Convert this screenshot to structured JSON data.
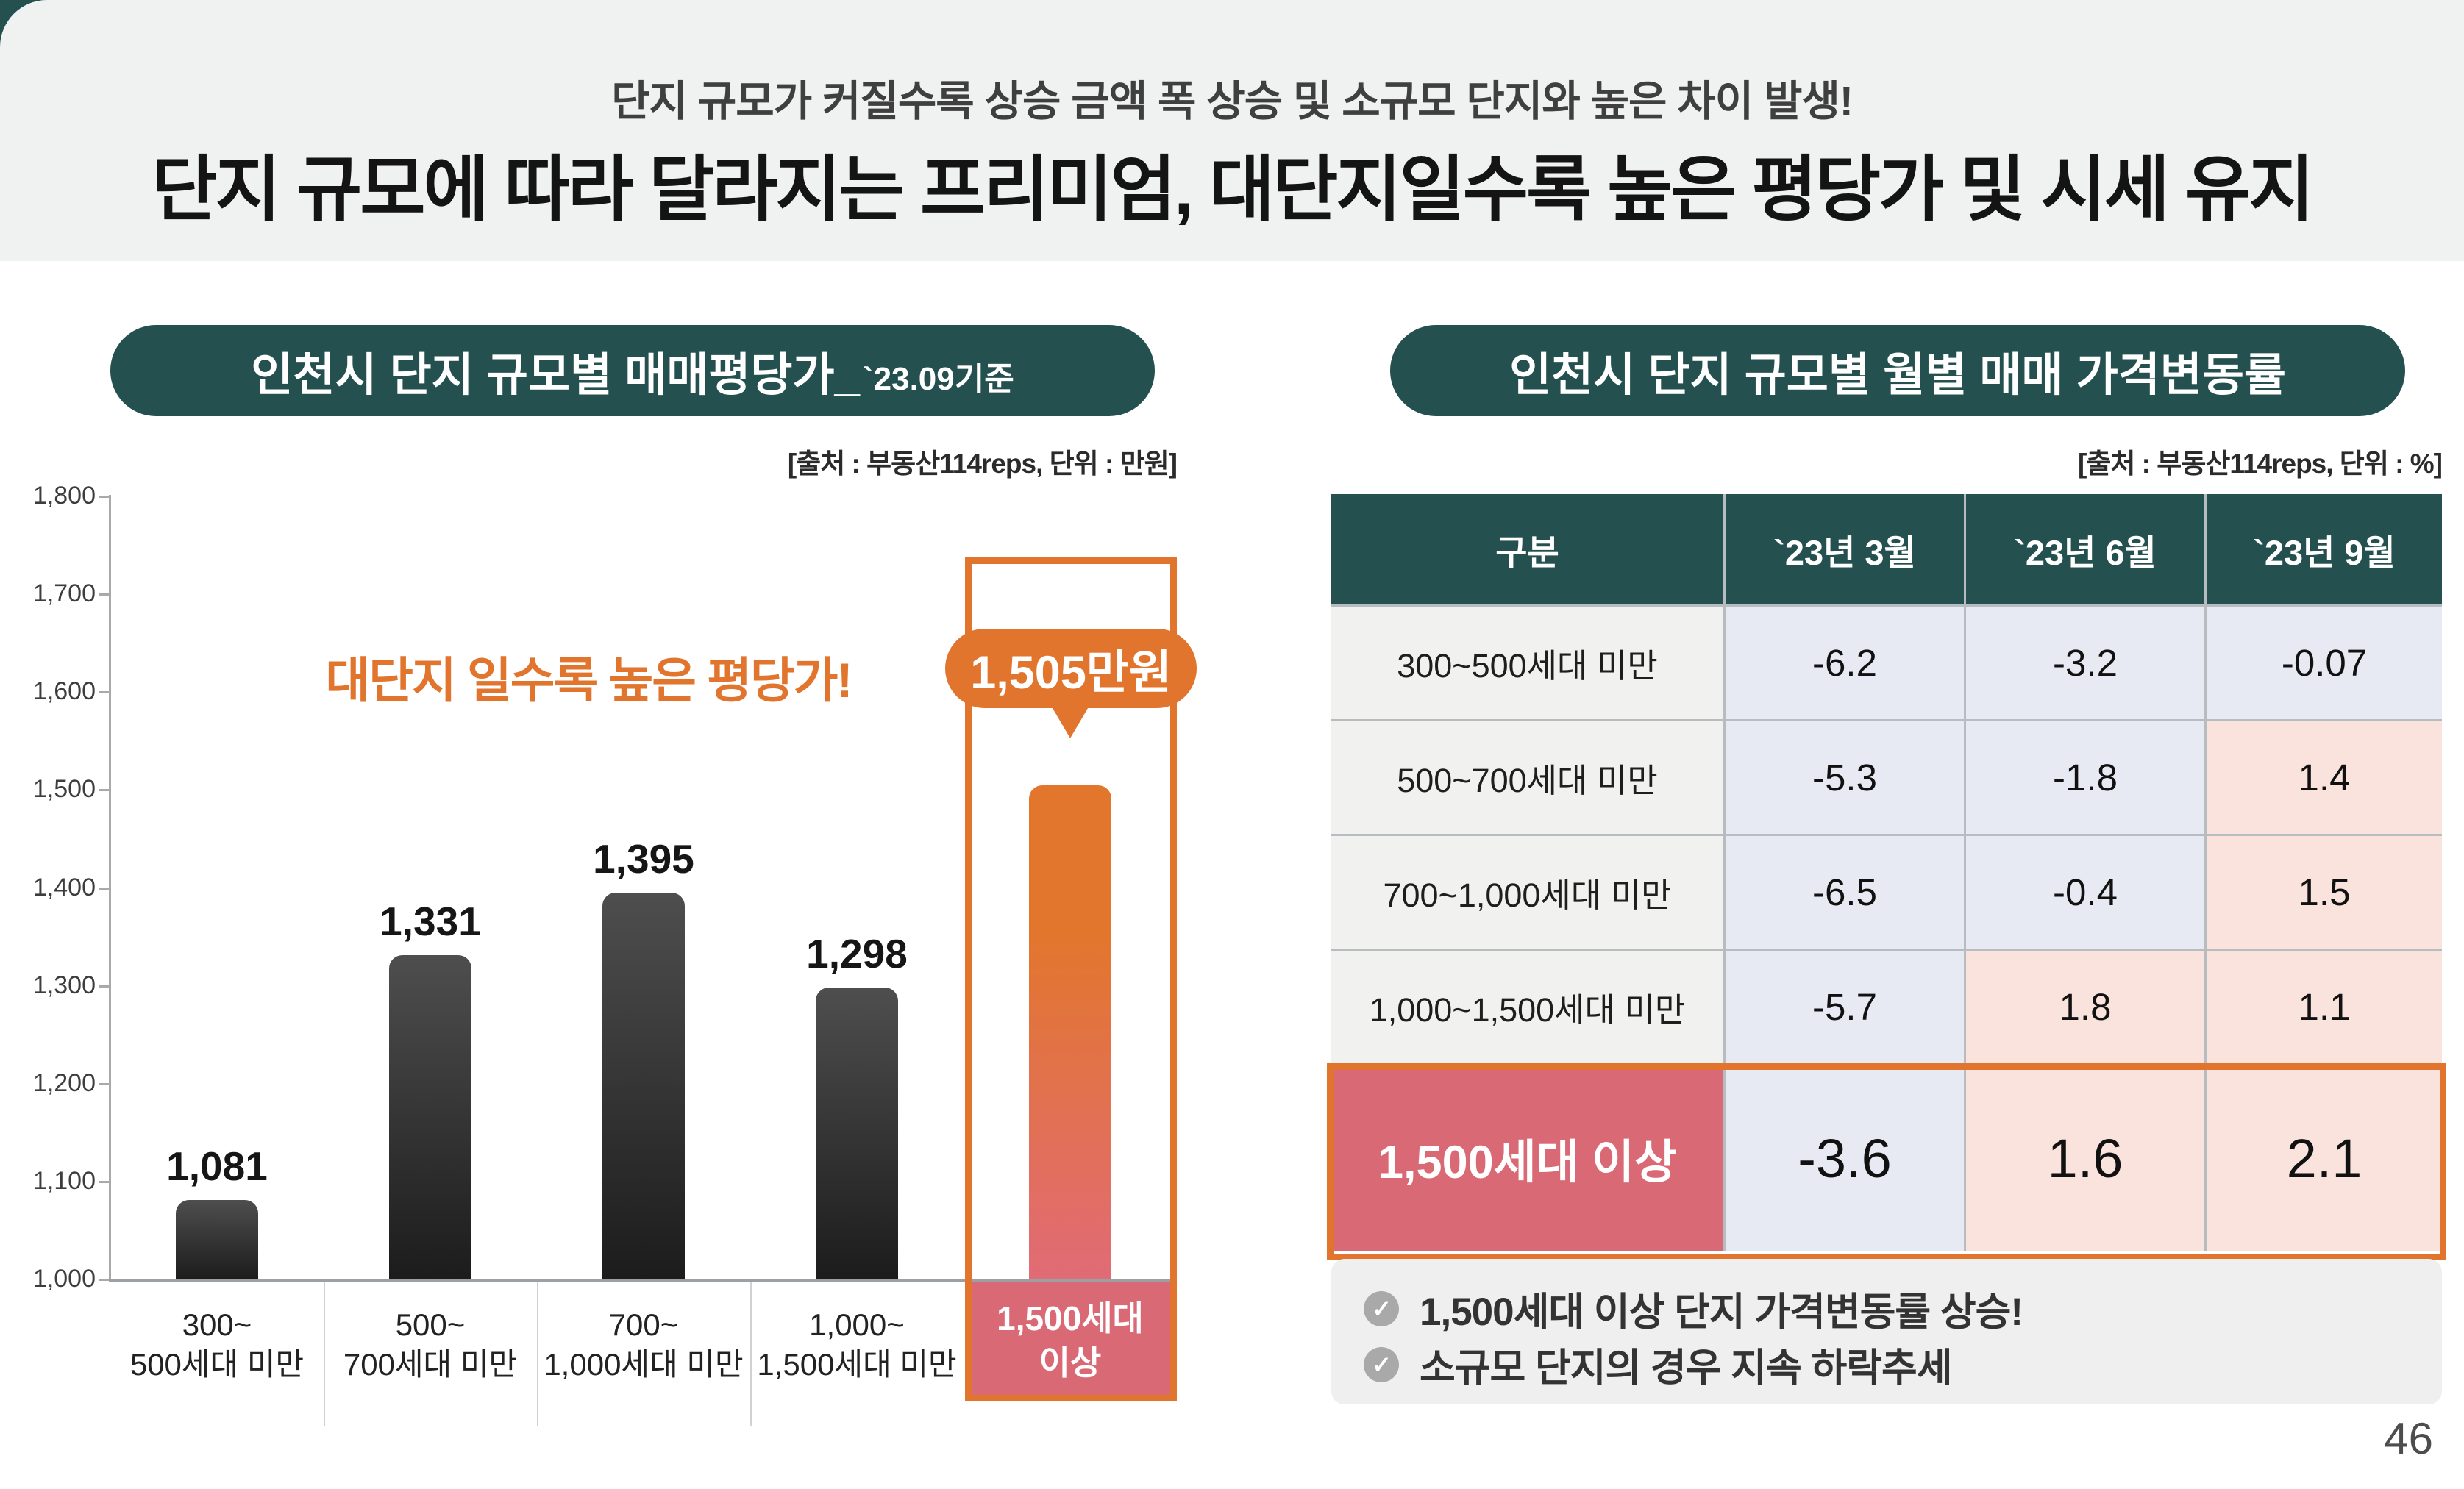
{
  "header": {
    "subtitle": "단지 규모가 커질수록 상승 금액 폭 상승 및 소규모 단지와 높은 차이 발생!",
    "title": "단지 규모에 따라 달라지는 프리미엄, 대단지일수록 높은 평당가 및 시세 유지"
  },
  "left_panel": {
    "title": "인천시 단지 규모별 매매평당가_",
    "title_suffix": "`23.09기준",
    "source": "[출처 : 부동산114reps, 단위 : 만원]"
  },
  "right_panel": {
    "title": "인천시 단지 규모별 월별 매매 가격변동률",
    "source": "[출처 : 부동산114reps, 단위 : %]",
    "notes": [
      "1,500세대 이상 단지 가격변동률 상승!",
      "소규모 단지의 경우 지속 하락추세"
    ]
  },
  "chart_data": [
    {
      "type": "bar",
      "title": "인천시 단지 규모별 매매평당가 `23.09기준",
      "ylabel": "만원",
      "ylim": [
        1000,
        1800
      ],
      "ytick_step": 100,
      "grid": false,
      "categories": [
        "300~\n500세대 미만",
        "500~\n700세대 미만",
        "700~\n1,000세대 미만",
        "1,000~\n1,500세대 미만",
        "1,500세대\n이상"
      ],
      "values": [
        1081,
        1331,
        1395,
        1298,
        1505
      ],
      "highlight_index": 4,
      "annotation": "대단지 일수록 높은 평당가!",
      "callout_label": "1,505만원"
    },
    {
      "type": "table",
      "title": "인천시 단지 규모별 월별 매매 가격변동률 (%)",
      "columns": [
        "구분",
        "`23년 3월",
        "`23년 6월",
        "`23년 9월"
      ],
      "rows": [
        {
          "label": "300~500세대 미만",
          "values": [
            -6.2,
            -3.2,
            -0.07
          ],
          "highlight": false
        },
        {
          "label": "500~700세대 미만",
          "values": [
            -5.3,
            -1.8,
            1.4
          ],
          "highlight": false
        },
        {
          "label": "700~1,000세대 미만",
          "values": [
            -6.5,
            -0.4,
            1.5
          ],
          "highlight": false
        },
        {
          "label": "1,000~1,500세대 미만",
          "values": [
            -5.7,
            1.8,
            1.1
          ],
          "highlight": false
        },
        {
          "label": "1,500세대 이상",
          "values": [
            -3.6,
            1.6,
            2.1
          ],
          "highlight": true
        }
      ]
    }
  ],
  "colors": {
    "teal": "#24514f",
    "orange": "#e2752e",
    "pink": "#d96a75",
    "negative_cell": "#e7eaf3",
    "positive_cell": "#fbe3dd",
    "label_cell": "#f1f1ef",
    "header_band": "#f0f1f1",
    "bar_gray_top": "#4e4e4e",
    "bar_gray_bottom": "#1c1c1c"
  },
  "page_number": "46"
}
